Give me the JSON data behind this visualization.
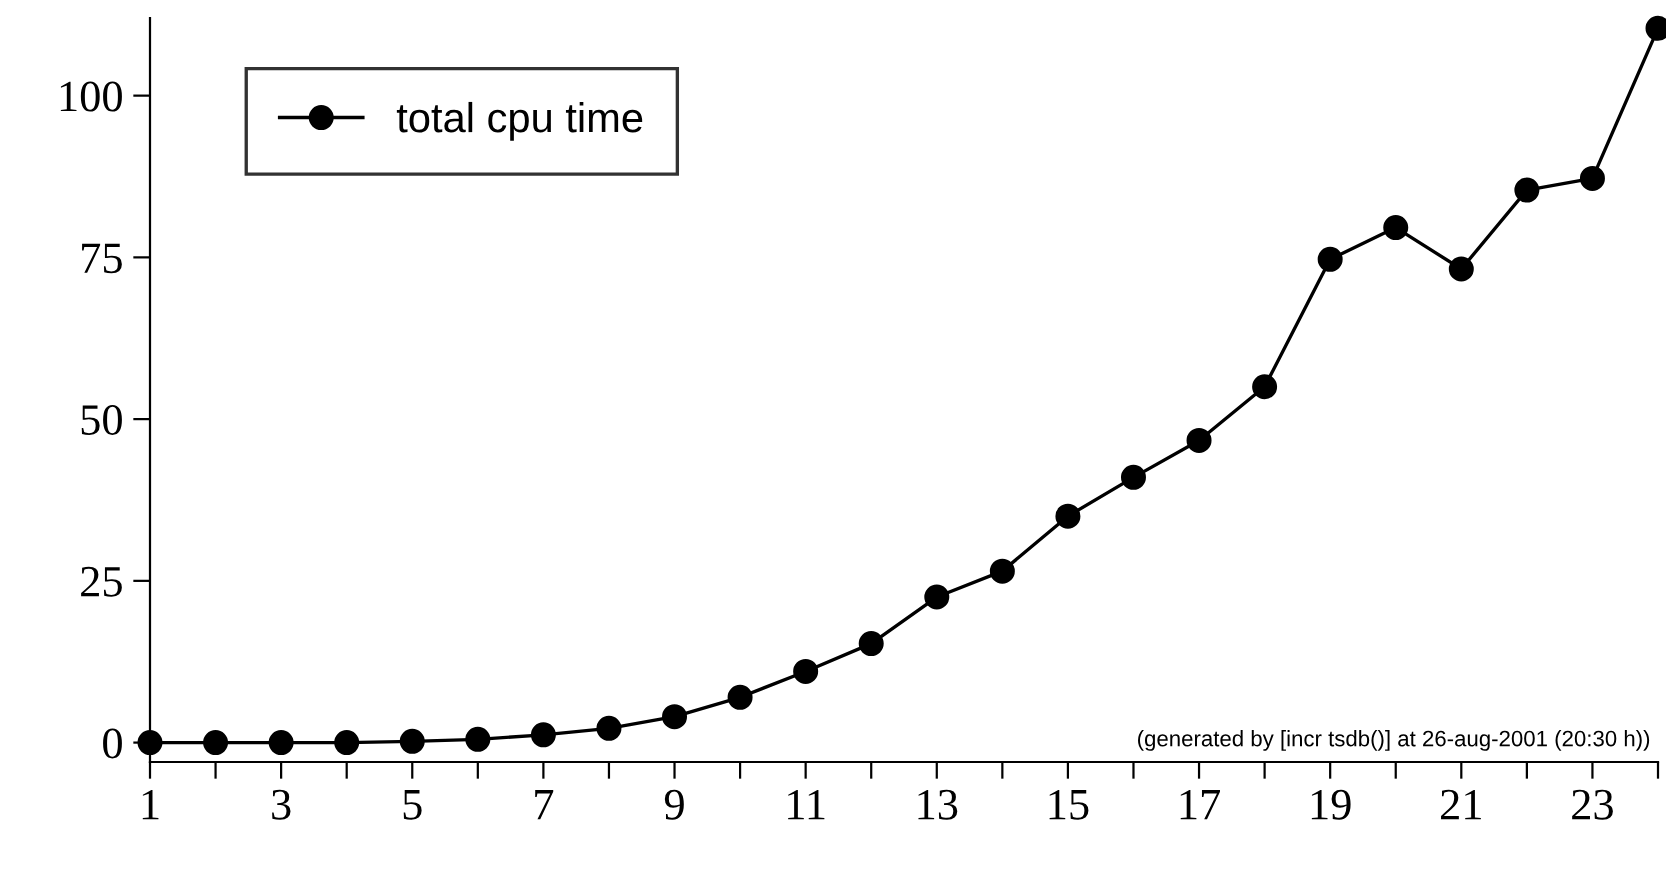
{
  "chart_data": {
    "type": "line",
    "x": [
      1,
      2,
      3,
      4,
      5,
      6,
      7,
      8,
      9,
      10,
      11,
      12,
      13,
      14,
      15,
      16,
      17,
      18,
      19,
      20,
      21,
      22,
      23,
      24
    ],
    "series": [
      {
        "name": "total cpu time",
        "color": "#000000",
        "values": [
          0,
          0,
          0,
          0,
          0.2,
          0.5,
          1.2,
          2.2,
          4,
          7,
          11,
          15.3,
          22.5,
          26.5,
          35,
          41,
          46.7,
          55,
          74.7,
          79.6,
          73.2,
          85.4,
          87.2,
          110.4
        ]
      }
    ],
    "xlim": [
      1,
      24
    ],
    "ylim": [
      -3,
      112
    ],
    "xticks": [
      1,
      {
        "value": 2,
        "label": null
      },
      3,
      {
        "value": 4,
        "label": null
      },
      5,
      {
        "value": 6,
        "label": null
      },
      7,
      {
        "value": 8,
        "label": null
      },
      9,
      {
        "value": 10,
        "label": null
      },
      11,
      {
        "value": 12,
        "label": null
      },
      13,
      {
        "value": 14,
        "label": null
      },
      15,
      {
        "value": 16,
        "label": null
      },
      17,
      {
        "value": 18,
        "label": null
      },
      19,
      {
        "value": 20,
        "label": null
      },
      21,
      {
        "value": 22,
        "label": null
      },
      23,
      {
        "value": 24,
        "label": null
      }
    ],
    "yticks": [
      0,
      25,
      50,
      75,
      100
    ],
    "annotations": [
      {
        "text": "(generated by [incr tsdb()] at 26-aug-2001 (20:30 h))"
      }
    ],
    "marker": "circle",
    "line_style": "solid",
    "legend": "top left",
    "grid": false
  }
}
